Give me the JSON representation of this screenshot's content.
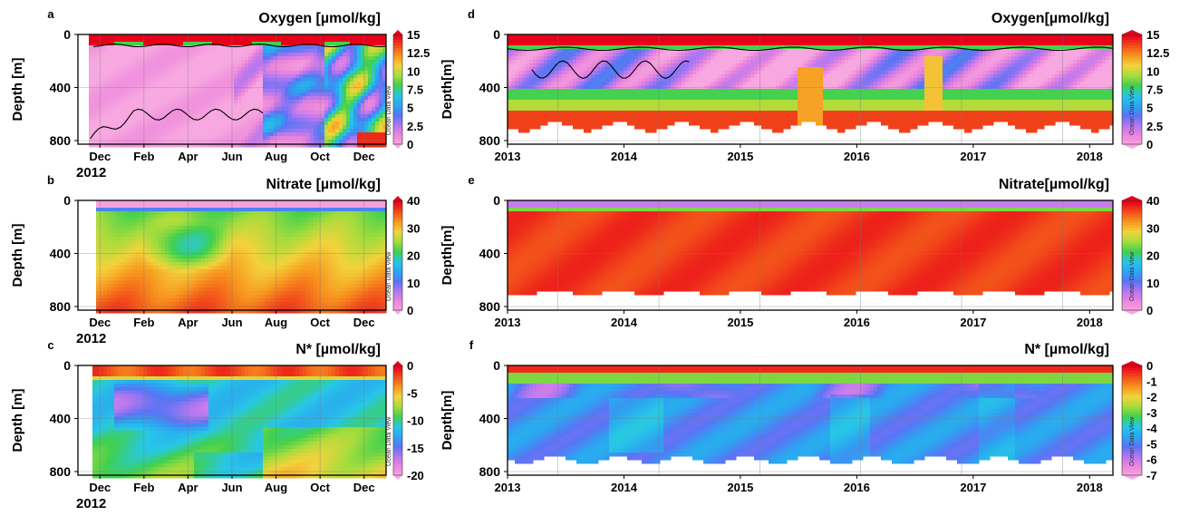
{
  "colormap": [
    "#f7a8e0",
    "#ec86dc",
    "#b577f0",
    "#5a74f4",
    "#2aa6f0",
    "#27c7e6",
    "#3fd04f",
    "#a6dc3c",
    "#f3d23c",
    "#f7961e",
    "#f24a1a",
    "#e8001a"
  ],
  "colorbar_side_label": "Ocean Data View",
  "chart_data": [
    {
      "id": "a",
      "panel_label": "a",
      "type": "heatmap",
      "title": "Oxygen [µmol/kg]",
      "xlabel": "",
      "ylabel": "Depth [m]",
      "year_label": "2012",
      "ylim": [
        1000,
        0
      ],
      "y_ticks": [
        "0",
        "400",
        "800"
      ],
      "x_ticks": [
        "Dec",
        "Feb",
        "Apr",
        "Jun",
        "Aug",
        "Oct",
        "Dec"
      ],
      "colorbar": {
        "min": 0,
        "max": 15,
        "tick_labels": [
          "15",
          "12.5",
          "10",
          "7.5",
          "5",
          "2.5",
          "0"
        ]
      },
      "contour_level": 2.5
    },
    {
      "id": "b",
      "panel_label": "b",
      "type": "heatmap",
      "title": "Nitrate [µmol/kg]",
      "xlabel": "",
      "ylabel": "Depth [m]",
      "year_label": "2012",
      "ylim": [
        1000,
        0
      ],
      "y_ticks": [
        "0",
        "400",
        "800"
      ],
      "x_ticks": [
        "Dec",
        "Feb",
        "Apr",
        "Jun",
        "Aug",
        "Oct",
        "Dec"
      ],
      "colorbar": {
        "min": 0,
        "max": 40,
        "tick_labels": [
          "40",
          "30",
          "20",
          "10",
          "0"
        ]
      }
    },
    {
      "id": "c",
      "panel_label": "c",
      "type": "heatmap",
      "title": "N* [µmol/kg]",
      "xlabel": "",
      "ylabel": "Depth [m]",
      "year_label": "2012",
      "ylim": [
        1000,
        0
      ],
      "y_ticks": [
        "0",
        "400",
        "800"
      ],
      "x_ticks": [
        "Dec",
        "Feb",
        "Apr",
        "Jun",
        "Aug",
        "Oct",
        "Dec"
      ],
      "colorbar": {
        "min": -22,
        "max": 3,
        "tick_labels": [
          "0",
          "-5",
          "-10",
          "-15",
          "-20"
        ]
      }
    },
    {
      "id": "d",
      "panel_label": "d",
      "type": "heatmap",
      "title": "Oxygen[µmol/kg]",
      "xlabel": "",
      "ylabel": "Depth[m]",
      "ylim": [
        800,
        0
      ],
      "y_ticks": [
        "0",
        "400",
        "800"
      ],
      "x_ticks": [
        "2013",
        "2014",
        "2015",
        "2016",
        "2017",
        "2018"
      ],
      "colorbar": {
        "min": 0,
        "max": 15,
        "tick_labels": [
          "15",
          "12.5",
          "10",
          "7.5",
          "5",
          "2.5",
          "0"
        ]
      },
      "contour_level": 2.5
    },
    {
      "id": "e",
      "panel_label": "e",
      "type": "heatmap",
      "title": "Nitrate[µmol/kg]",
      "xlabel": "",
      "ylabel": "Depth[m]",
      "ylim": [
        800,
        0
      ],
      "y_ticks": [
        "0",
        "400",
        "800"
      ],
      "x_ticks": [
        "2013",
        "2014",
        "2015",
        "2016",
        "2017",
        "2018"
      ],
      "colorbar": {
        "min": -10,
        "max": 40,
        "tick_labels": [
          "40",
          "30",
          "20",
          "10",
          "0"
        ]
      }
    },
    {
      "id": "f",
      "panel_label": "f",
      "type": "heatmap",
      "title": "N* [µmol/kg]",
      "xlabel": "",
      "ylabel": "Depth[m]",
      "ylim": [
        800,
        0
      ],
      "y_ticks": [
        "0",
        "400",
        "800"
      ],
      "x_ticks": [
        "2013",
        "2014",
        "2015",
        "2016",
        "2017",
        "2018"
      ],
      "colorbar": {
        "min": -7,
        "max": 0,
        "tick_labels": [
          "0",
          "-1",
          "-2",
          "-3",
          "-4",
          "-5",
          "-6",
          "-7"
        ]
      }
    }
  ]
}
